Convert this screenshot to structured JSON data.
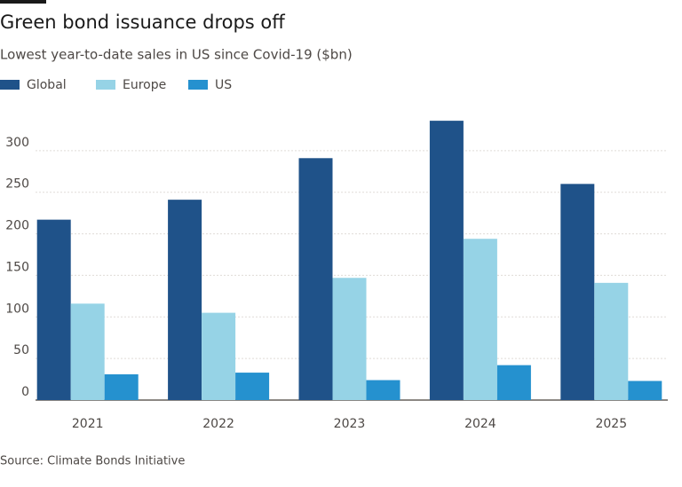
{
  "chart_data": {
    "type": "bar",
    "title": "Green bond issuance drops off",
    "subtitle": "Lowest year-to-date sales in US since Covid-19 ($bn)",
    "source": "Source: Climate Bonds Initiative",
    "categories": [
      "2021",
      "2022",
      "2023",
      "2024",
      "2025"
    ],
    "series": [
      {
        "name": "Global",
        "color": "#1f5289",
        "values": [
          217,
          241,
          291,
          336,
          260
        ]
      },
      {
        "name": "Europe",
        "color": "#96d3e6",
        "values": [
          116,
          105,
          147,
          194,
          141
        ]
      },
      {
        "name": "US",
        "color": "#2591cf",
        "values": [
          31,
          33,
          24,
          42,
          23
        ]
      }
    ],
    "ylim": [
      0,
      350
    ],
    "yticks": [
      0,
      50,
      100,
      150,
      200,
      250,
      300
    ],
    "grid": true
  }
}
